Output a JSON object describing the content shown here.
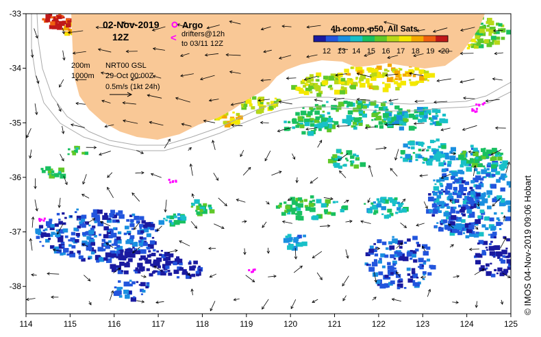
{
  "header": {
    "date": "02-Nov-2019",
    "time": "12Z"
  },
  "legend": {
    "argo_label": "Argo",
    "drifters_label": "drifters@12h",
    "drifters_to": "to 03/11 12Z",
    "contour_200": "200m",
    "contour_1000": "1000m",
    "product": "NRT00 GSL",
    "product_date": "29-Oct 00:00Z",
    "arrow_scale": "0.5m/s (1kt 24h)"
  },
  "colorbar": {
    "title": "4h comp, p50, All Sats",
    "ticks": [
      "12",
      "13",
      "14",
      "15",
      "16",
      "17",
      "18",
      "19",
      "20"
    ],
    "colors": [
      "#1a1aa0",
      "#2255dd",
      "#1a8fe0",
      "#19c0c8",
      "#19c060",
      "#60c828",
      "#b8d818",
      "#f4e800",
      "#f4a800",
      "#f06010",
      "#c01818"
    ]
  },
  "axes": {
    "x_ticks": [
      "114",
      "115",
      "116",
      "117",
      "118",
      "119",
      "120",
      "121",
      "122",
      "123",
      "124",
      "125"
    ],
    "y_ticks": [
      "-33",
      "-34",
      "-35",
      "-36",
      "-37",
      "-38"
    ],
    "xlim": [
      114,
      125
    ],
    "ylim": [
      -38.5,
      -33
    ]
  },
  "colors": {
    "land": "#f9c896",
    "argo": "#ff00ff",
    "drifter": "#ff00ff",
    "contour": "#aaaaaa"
  },
  "credit": "© IMOS 04-Nov-2019 09:06 Hobart"
}
